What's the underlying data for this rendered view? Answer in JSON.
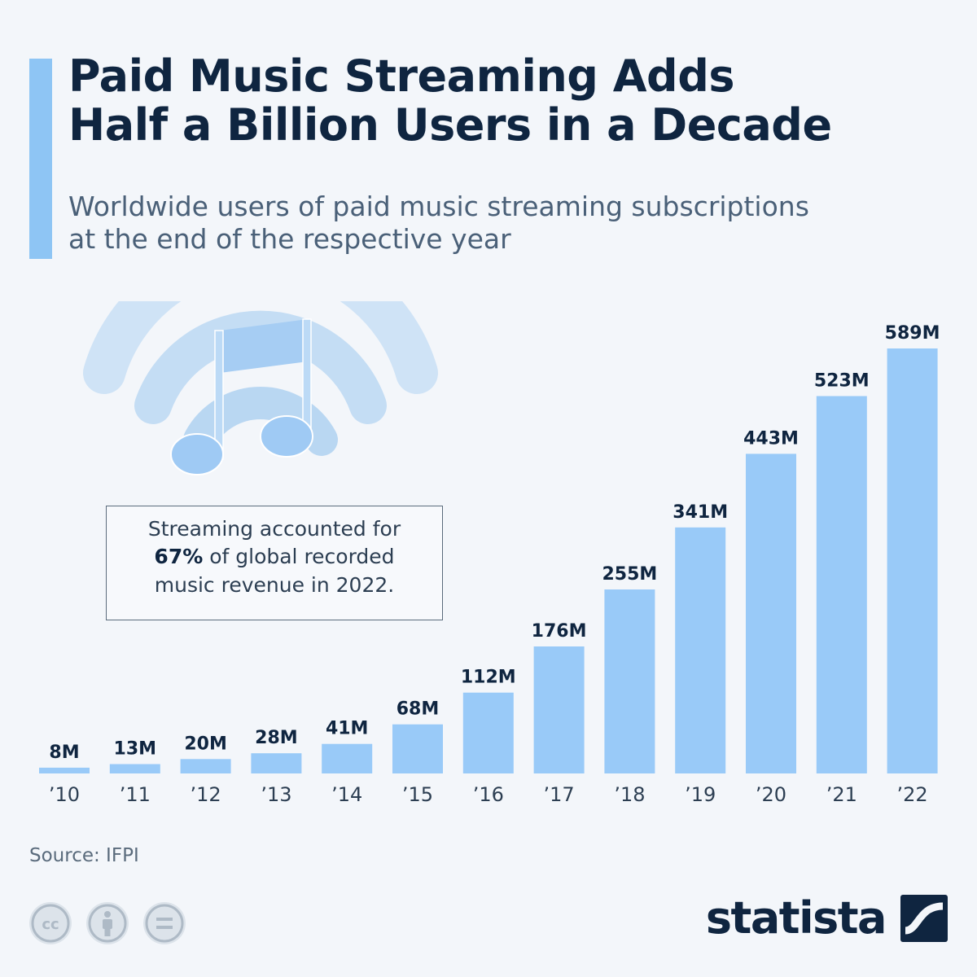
{
  "header": {
    "title_line1": "Paid Music Streaming Adds",
    "title_line2": "Half a Billion Users in a Decade",
    "subtitle_line1": "Worldwide users of paid music streaming subscriptions",
    "subtitle_line2": "at the end of the respective year"
  },
  "callout": {
    "line1": "Streaming accounted for",
    "emphasis": "67%",
    "line2_rest": " of global recorded",
    "line3": "music revenue in 2022."
  },
  "chart_data": {
    "type": "bar",
    "title": "",
    "xlabel": "",
    "ylabel": "",
    "categories": [
      "’10",
      "’11",
      "’12",
      "’13",
      "’14",
      "’15",
      "’16",
      "’17",
      "’18",
      "’19",
      "’20",
      "’21",
      "’22"
    ],
    "values": [
      8,
      13,
      20,
      28,
      41,
      68,
      112,
      176,
      255,
      341,
      443,
      523,
      589
    ],
    "data_labels": [
      "8M",
      "13M",
      "20M",
      "28M",
      "41M",
      "68M",
      "112M",
      "176M",
      "255M",
      "341M",
      "443M",
      "523M",
      "589M"
    ],
    "unit": "M",
    "ylim": [
      0,
      589
    ],
    "grid": false,
    "legend": "none",
    "bar_color": "#99caf8"
  },
  "footer": {
    "source": "Source: IFPI",
    "brand": "statista"
  },
  "icons": [
    "music-note-wifi-icon",
    "cc-icon",
    "attribution-icon",
    "no-derivatives-icon",
    "statista-logo-icon"
  ],
  "colors": {
    "background": "#f3f6fa",
    "accent": "#8ec5f4",
    "title": "#0f2540",
    "subtitle": "#4a6078"
  }
}
